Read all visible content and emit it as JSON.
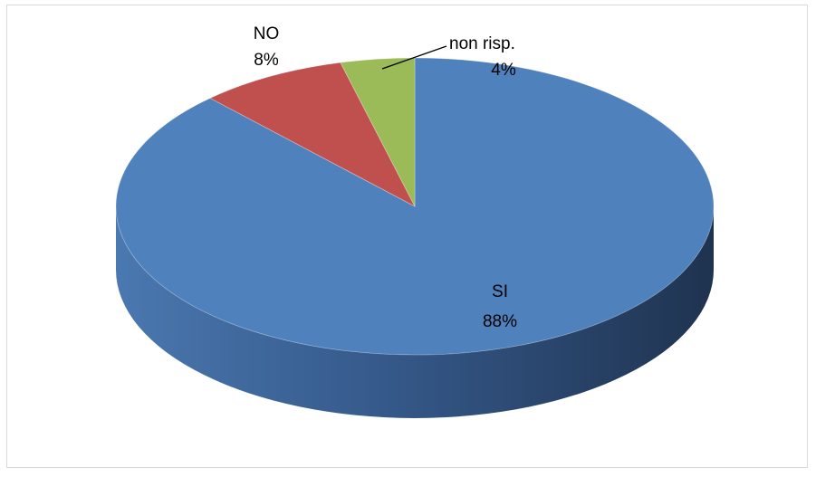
{
  "chart_data": {
    "type": "pie",
    "style": "3d",
    "slices": [
      {
        "label": "SI",
        "value": 88,
        "percent_label": "88%",
        "color": "#4f81bd"
      },
      {
        "label": "NO",
        "value": 8,
        "percent_label": "8%",
        "color": "#c0504d"
      },
      {
        "label": "non risp.",
        "value": 4,
        "percent_label": "4%",
        "color": "#9bbb59"
      }
    ],
    "legend": "none",
    "data_labels": "category and percentage"
  }
}
